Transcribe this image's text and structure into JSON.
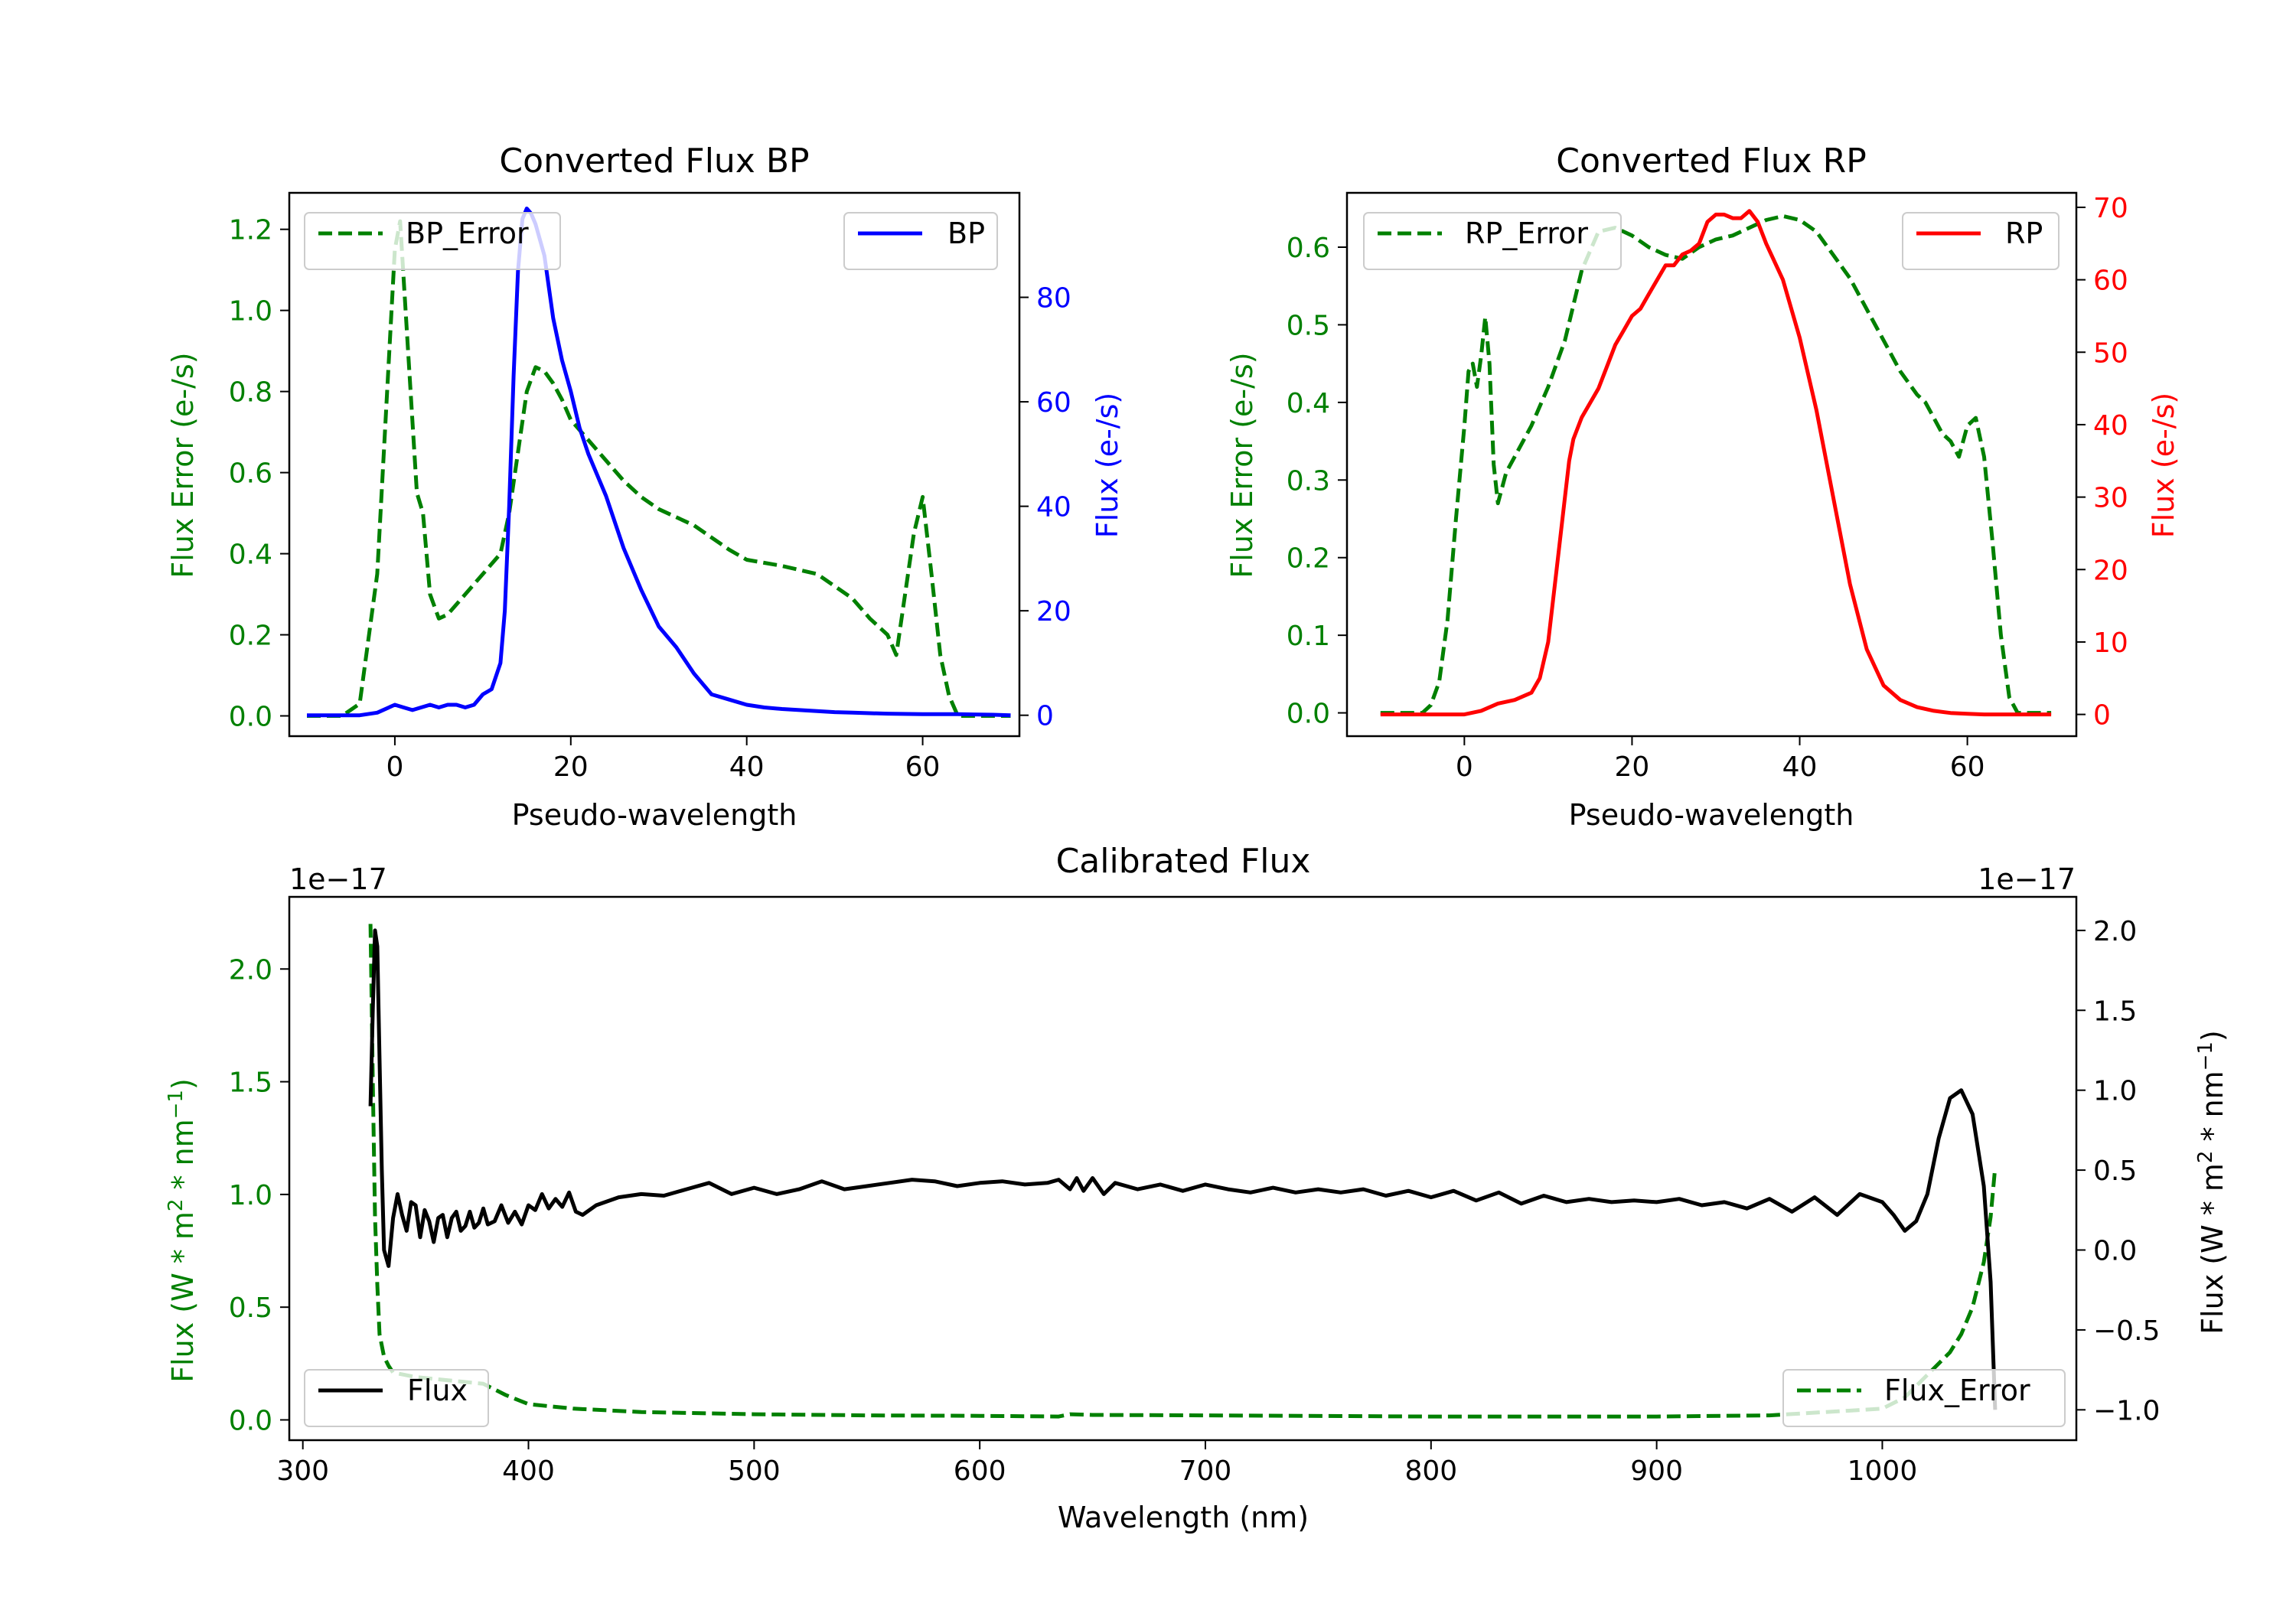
{
  "chart_data": [
    {
      "type": "line",
      "title": "Converted Flux BP",
      "xlabel": "Pseudo-wavelength",
      "ylabel_left": "Flux Error (e-/s)",
      "ylabel_right": "Flux (e-/s)",
      "xlim": [
        -12,
        71
      ],
      "ylim_left": [
        -0.05,
        1.29
      ],
      "ylim_right": [
        -4,
        100
      ],
      "x_ticks": [
        0,
        20,
        40,
        60
      ],
      "y_ticks_left": [
        0.0,
        0.2,
        0.4,
        0.6,
        0.8,
        1.0,
        1.2
      ],
      "y_ticks_right": [
        0,
        20,
        40,
        60,
        80
      ],
      "left_color": "#008000",
      "right_color": "#0000ff",
      "series": [
        {
          "name": "BP_Error",
          "axis": "left",
          "style": "dashed",
          "color": "#008000",
          "legend": "top-left",
          "x": [
            -10,
            -6,
            -4,
            -2,
            -1,
            0,
            0.6,
            1.5,
            2.5,
            3.2,
            4,
            5,
            6,
            8,
            10,
            12,
            13,
            14,
            15,
            16,
            17,
            18,
            19,
            20,
            22,
            24,
            26,
            28,
            30,
            32,
            34,
            36,
            38,
            40,
            44,
            48,
            52,
            54,
            56,
            57,
            58,
            59,
            60,
            61,
            62,
            63,
            64,
            66,
            68,
            70
          ],
          "y": [
            0.0,
            0.0,
            0.03,
            0.35,
            0.75,
            1.15,
            1.22,
            0.9,
            0.55,
            0.5,
            0.3,
            0.24,
            0.25,
            0.3,
            0.35,
            0.4,
            0.5,
            0.65,
            0.8,
            0.86,
            0.85,
            0.82,
            0.78,
            0.73,
            0.68,
            0.63,
            0.58,
            0.54,
            0.51,
            0.49,
            0.47,
            0.44,
            0.41,
            0.385,
            0.37,
            0.35,
            0.29,
            0.24,
            0.2,
            0.15,
            0.3,
            0.45,
            0.54,
            0.35,
            0.15,
            0.05,
            0.0,
            0.0,
            0.0,
            0.0
          ]
        },
        {
          "name": "BP",
          "axis": "right",
          "style": "solid",
          "color": "#0000ff",
          "legend": "top-right",
          "x": [
            -10,
            -4,
            -2,
            0,
            1,
            2,
            4,
            5,
            6,
            7,
            8,
            9,
            10,
            11,
            12,
            12.5,
            13,
            13.5,
            14,
            14.5,
            15,
            15.5,
            16,
            17,
            18,
            19,
            20,
            21,
            22,
            24,
            26,
            28,
            30,
            32,
            34,
            36,
            38,
            40,
            42,
            44,
            46,
            48,
            50,
            52,
            54,
            56,
            60,
            64,
            68,
            70
          ],
          "y": [
            0,
            0,
            0.5,
            2,
            1.5,
            1,
            2,
            1.5,
            2,
            2,
            1.5,
            2,
            4,
            5,
            10,
            20,
            40,
            65,
            85,
            95,
            97,
            96,
            94,
            88,
            76,
            68,
            62,
            55,
            50,
            42,
            32,
            24,
            17,
            13,
            8,
            4,
            3,
            2,
            1.5,
            1.2,
            1,
            0.8,
            0.6,
            0.5,
            0.4,
            0.3,
            0.2,
            0.2,
            0.1,
            0.0
          ]
        }
      ]
    },
    {
      "type": "line",
      "title": "Converted Flux RP",
      "xlabel": "Pseudo-wavelength",
      "ylabel_left": "Flux Error (e-/s)",
      "ylabel_right": "Flux (e-/s)",
      "xlim": [
        -14,
        73
      ],
      "ylim_left": [
        -0.03,
        0.67
      ],
      "ylim_right": [
        -3,
        72
      ],
      "x_ticks": [
        0,
        20,
        40,
        60
      ],
      "y_ticks_left": [
        0.0,
        0.1,
        0.2,
        0.3,
        0.4,
        0.5,
        0.6
      ],
      "y_ticks_right": [
        0,
        10,
        20,
        30,
        40,
        50,
        60,
        70
      ],
      "left_color": "#008000",
      "right_color": "#ff0000",
      "series": [
        {
          "name": "RP_Error",
          "axis": "left",
          "style": "dashed",
          "color": "#008000",
          "legend": "top-left",
          "x": [
            -10,
            -5,
            -4,
            -3,
            -2,
            -1,
            0,
            0.5,
            1,
            1.5,
            2,
            2.5,
            3,
            3.5,
            4,
            5,
            6,
            8,
            10,
            12,
            14,
            16,
            18,
            20,
            22,
            24,
            26,
            28,
            30,
            32,
            34,
            36,
            38,
            40,
            42,
            44,
            46,
            48,
            50,
            52,
            54,
            55,
            56,
            57,
            58,
            59,
            60,
            61,
            62,
            63,
            64,
            65,
            66,
            68,
            70
          ],
          "y": [
            0.0,
            0.0,
            0.01,
            0.04,
            0.12,
            0.25,
            0.37,
            0.44,
            0.45,
            0.42,
            0.46,
            0.51,
            0.45,
            0.32,
            0.27,
            0.31,
            0.33,
            0.37,
            0.42,
            0.48,
            0.57,
            0.62,
            0.625,
            0.615,
            0.6,
            0.59,
            0.585,
            0.6,
            0.61,
            0.615,
            0.625,
            0.635,
            0.64,
            0.635,
            0.62,
            0.59,
            0.56,
            0.52,
            0.48,
            0.44,
            0.41,
            0.4,
            0.38,
            0.36,
            0.35,
            0.33,
            0.37,
            0.38,
            0.33,
            0.22,
            0.1,
            0.02,
            0.0,
            0.0,
            0.0
          ]
        },
        {
          "name": "RP",
          "axis": "right",
          "style": "solid",
          "color": "#ff0000",
          "legend": "top-right",
          "x": [
            -10,
            -4,
            -2,
            0,
            2,
            4,
            6,
            8,
            9,
            10,
            11,
            12,
            12.5,
            13,
            14,
            15,
            16,
            17,
            18,
            19,
            20,
            21,
            22,
            23,
            24,
            25,
            26,
            27,
            28,
            29,
            30,
            31,
            32,
            33,
            34,
            35,
            36,
            38,
            40,
            42,
            44,
            46,
            48,
            50,
            52,
            54,
            56,
            58,
            60,
            62,
            64,
            66,
            68,
            70
          ],
          "y": [
            0,
            0,
            0,
            0,
            0.5,
            1.5,
            2,
            3,
            5,
            10,
            20,
            30,
            35,
            38,
            41,
            43,
            45,
            48,
            51,
            53,
            55,
            56,
            58,
            60,
            62,
            62,
            63.5,
            64,
            65,
            68,
            69,
            69,
            68.5,
            68.5,
            69.5,
            68,
            65,
            60,
            52,
            42,
            30,
            18,
            9,
            4,
            2,
            1,
            0.5,
            0.2,
            0.1,
            0.0,
            0.0,
            0.0,
            0.0,
            0.0
          ]
        }
      ]
    },
    {
      "type": "line",
      "title": "Calibrated Flux",
      "xlabel": "Wavelength (nm)",
      "ylabel_left": "Flux (W * m² * nm⁻¹)",
      "ylabel_right": "Flux (W * m² * nm⁻¹)",
      "ylabel_unit_prefix": "Flux (W * m",
      "ylabel_unit_mid": " * nm",
      "ylabel_exp_2": "2",
      "ylabel_exp_neg1": "−1",
      "ylabel_unit_suffix": ")",
      "offset_left": "1e−17",
      "offset_right": "1e−17",
      "scale": 1e-17,
      "xlim": [
        294,
        1086
      ],
      "ylim_left": [
        -0.09,
        2.32
      ],
      "ylim_right": [
        -1.19,
        2.21
      ],
      "x_ticks": [
        300,
        400,
        500,
        600,
        700,
        800,
        900,
        1000
      ],
      "y_ticks_left": [
        0.0,
        0.5,
        1.0,
        1.5,
        2.0
      ],
      "y_ticks_left_labels": [
        "0.0",
        "0.5",
        "1.0",
        "1.5",
        "2.0"
      ],
      "y_ticks_right": [
        -1.0,
        -0.5,
        0.0,
        0.5,
        1.0,
        1.5,
        2.0
      ],
      "y_ticks_right_labels": [
        "−1.0",
        "−0.5",
        "0.0",
        "0.5",
        "1.0",
        "1.5",
        "2.0"
      ],
      "left_color": "#008000",
      "right_color": "#000000",
      "series": [
        {
          "name": "Flux_Error",
          "axis": "left",
          "style": "dashed",
          "color": "#008000",
          "legend": "bottom-right",
          "x": [
            330,
            331,
            332,
            333,
            334,
            336,
            338,
            340,
            345,
            350,
            360,
            370,
            380,
            390,
            400,
            420,
            450,
            500,
            550,
            600,
            635,
            640,
            650,
            700,
            800,
            900,
            950,
            1000,
            1010,
            1020,
            1030,
            1035,
            1040,
            1045,
            1048,
            1050
          ],
          "y": [
            2.2,
            1.5,
            0.9,
            0.6,
            0.38,
            0.28,
            0.24,
            0.21,
            0.2,
            0.19,
            0.18,
            0.17,
            0.16,
            0.11,
            0.07,
            0.05,
            0.035,
            0.025,
            0.02,
            0.018,
            0.015,
            0.025,
            0.022,
            0.02,
            0.015,
            0.015,
            0.02,
            0.05,
            0.1,
            0.2,
            0.3,
            0.38,
            0.5,
            0.7,
            0.9,
            1.12
          ]
        },
        {
          "name": "Flux",
          "axis": "right",
          "style": "solid",
          "color": "#000000",
          "legend": "bottom-left",
          "x": [
            330,
            331,
            332,
            333,
            334,
            335,
            336,
            338,
            340,
            342,
            344,
            346,
            348,
            350,
            352,
            354,
            356,
            358,
            360,
            362,
            364,
            366,
            368,
            370,
            372,
            374,
            376,
            378,
            380,
            382,
            385,
            388,
            391,
            394,
            397,
            400,
            403,
            406,
            409,
            412,
            415,
            418,
            421,
            424,
            430,
            440,
            450,
            460,
            470,
            480,
            490,
            500,
            510,
            520,
            530,
            540,
            550,
            560,
            570,
            580,
            590,
            600,
            610,
            620,
            630,
            635,
            640,
            643,
            646,
            650,
            655,
            660,
            670,
            680,
            690,
            700,
            710,
            720,
            730,
            740,
            750,
            760,
            770,
            780,
            790,
            800,
            810,
            820,
            830,
            840,
            850,
            860,
            870,
            880,
            890,
            900,
            910,
            920,
            930,
            940,
            950,
            960,
            970,
            980,
            990,
            1000,
            1005,
            1010,
            1015,
            1020,
            1025,
            1030,
            1035,
            1040,
            1045,
            1048,
            1050
          ],
          "y": [
            0.9,
            1.5,
            2.0,
            1.9,
            1.2,
            0.5,
            0.0,
            -0.1,
            0.2,
            0.35,
            0.22,
            0.12,
            0.3,
            0.28,
            0.08,
            0.25,
            0.18,
            0.05,
            0.2,
            0.22,
            0.08,
            0.2,
            0.24,
            0.12,
            0.15,
            0.24,
            0.14,
            0.17,
            0.26,
            0.16,
            0.18,
            0.28,
            0.17,
            0.24,
            0.16,
            0.28,
            0.25,
            0.35,
            0.26,
            0.32,
            0.27,
            0.36,
            0.24,
            0.22,
            0.28,
            0.33,
            0.35,
            0.34,
            0.38,
            0.42,
            0.35,
            0.39,
            0.35,
            0.38,
            0.43,
            0.38,
            0.4,
            0.42,
            0.44,
            0.43,
            0.4,
            0.42,
            0.43,
            0.41,
            0.42,
            0.44,
            0.38,
            0.45,
            0.37,
            0.45,
            0.35,
            0.42,
            0.38,
            0.41,
            0.37,
            0.41,
            0.38,
            0.36,
            0.39,
            0.36,
            0.38,
            0.36,
            0.38,
            0.34,
            0.37,
            0.33,
            0.37,
            0.31,
            0.36,
            0.29,
            0.34,
            0.3,
            0.32,
            0.3,
            0.31,
            0.3,
            0.32,
            0.28,
            0.3,
            0.26,
            0.32,
            0.24,
            0.33,
            0.22,
            0.35,
            0.3,
            0.22,
            0.12,
            0.18,
            0.35,
            0.7,
            0.95,
            1.0,
            0.85,
            0.4,
            -0.2,
            -1.0
          ]
        }
      ]
    }
  ]
}
